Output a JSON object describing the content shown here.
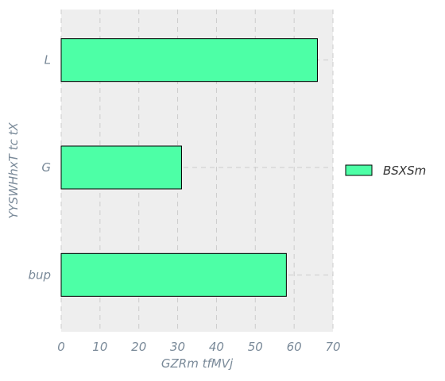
{
  "chart_data": {
    "type": "bar",
    "orientation": "horizontal",
    "categories": [
      "L",
      "G",
      "bup"
    ],
    "series": [
      {
        "name": "BSXSm",
        "values": [
          66,
          31,
          58
        ]
      }
    ],
    "title": "",
    "xlabel": "GZRm tfMVj",
    "ylabel": "YYSWHhxT tc tX",
    "xlim": [
      0,
      70
    ],
    "xticks": [
      "0",
      "10",
      "20",
      "30",
      "40",
      "50",
      "60",
      "70"
    ],
    "grid": true,
    "legend": "right",
    "colors": {
      "bar": "#4dffa6",
      "bar_edge": "#000000",
      "plot_bg": "#eeeeee",
      "grid": "#cccccc",
      "text": "#7a8a99"
    }
  }
}
